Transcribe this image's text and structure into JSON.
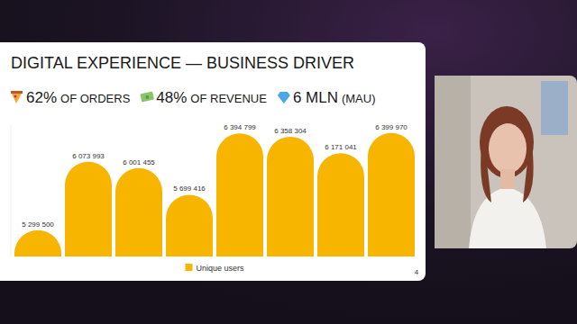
{
  "chart_data": {
    "type": "bar",
    "title": "DIGITAL EXPERIENCE — BUSINESS DRIVER",
    "annotations": [
      {
        "label": "62%",
        "text": "OF ORDERS"
      },
      {
        "label": "48%",
        "text": "OF REVENUE"
      },
      {
        "label": "6 MLN",
        "text": "(MAU)"
      }
    ],
    "page": "4",
    "categories": [
      null,
      null,
      null,
      null,
      null,
      null,
      null,
      null
    ],
    "series": [
      {
        "name": "Unique users",
        "color": "#f7b500",
        "values": [
          5299500,
          6073993,
          6001455,
          5699416,
          6394799,
          6358304,
          6171041,
          6399970
        ],
        "value_labels": [
          "5 299 500",
          "6 073 993",
          "6 001 455",
          "5 699 416",
          "6 394 799",
          "6 358 304",
          "6 171 041",
          "6 399 970"
        ]
      }
    ],
    "ylim": [
      5000000,
      6500000
    ],
    "tick_labels": false,
    "grid": false,
    "data_labels": true,
    "legend": "bottom"
  }
}
